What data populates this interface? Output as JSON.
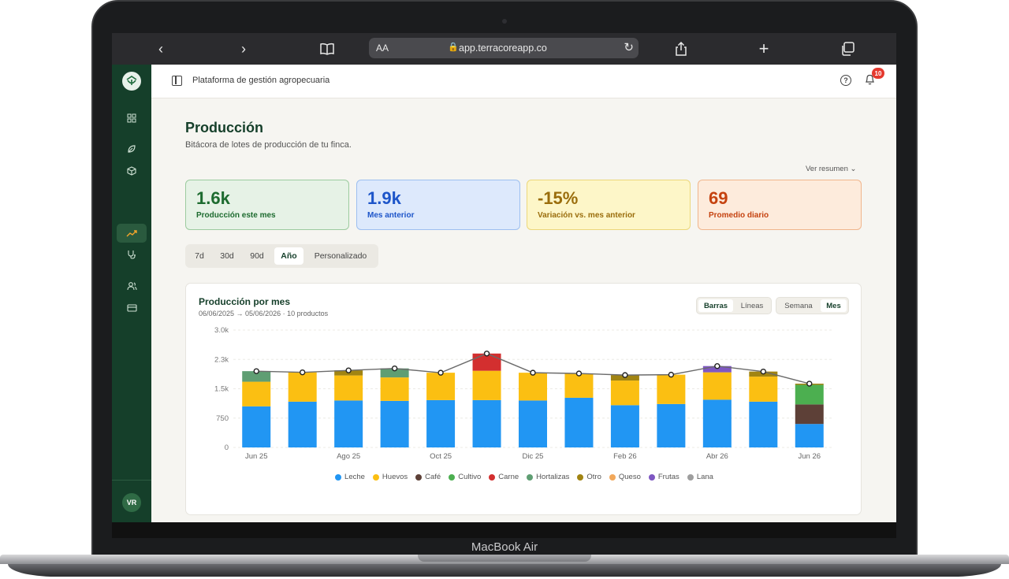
{
  "device": {
    "label": "MacBook Air"
  },
  "browser": {
    "aa_label": "AA",
    "url": "app.terracoreapp.co"
  },
  "topbar": {
    "title": "Plataforma de gestión agropecuaria",
    "notifications_count": "10"
  },
  "sidebar": {
    "avatar_initials": "VR"
  },
  "page": {
    "title": "Producción",
    "subtitle": "Bitácora de lotes de producción de tu finca.",
    "summary_toggle": "Ver resumen"
  },
  "kpis": [
    {
      "value": "1.6k",
      "label": "Producción este mes"
    },
    {
      "value": "1.9k",
      "label": "Mes anterior"
    },
    {
      "value": "-15%",
      "label": "Variación vs. mes anterior"
    },
    {
      "value": "69",
      "label": "Promedio diario"
    }
  ],
  "ranges": [
    "7d",
    "30d",
    "90d",
    "Año",
    "Personalizado"
  ],
  "range_selected": "Año",
  "chart_card": {
    "title": "Producción por mes",
    "meta": "06/06/2025 → 05/06/2026 · 10 productos",
    "view_options": [
      "Barras",
      "Líneas"
    ],
    "view_selected": "Barras",
    "period_options": [
      "Semana",
      "Mes"
    ],
    "period_selected": "Mes"
  },
  "colors": {
    "Leche": "#2196f3",
    "Huevos": "#fbbf12",
    "Café": "#5d4037",
    "Cultivo": "#4caf50",
    "Carne": "#d32f2f",
    "Hortalizas": "#5f9e73",
    "Otro": "#a18412",
    "Queso": "#f2a85a",
    "Frutas": "#7e57c2",
    "Lana": "#9e9e9e"
  },
  "chart_data": {
    "type": "bar",
    "stacked": true,
    "x": [
      "Jun 25",
      "Jul 25",
      "Ago 25",
      "Sep 25",
      "Oct 25",
      "Nov 25",
      "Dic 25",
      "Ene 26",
      "Feb 26",
      "Mar 26",
      "Abr 26",
      "May 26",
      "Jun 26"
    ],
    "x_tick_labels": [
      "Jun 25",
      "Ago 25",
      "Oct 25",
      "Dic 25",
      "Feb 26",
      "Abr 26",
      "Jun 26"
    ],
    "y_ticks": [
      "0",
      "750",
      "1.5k",
      "2.3k",
      "3.0k"
    ],
    "ylim": [
      0,
      3000
    ],
    "grid": true,
    "legend_position": "bottom",
    "series": [
      {
        "name": "Leche",
        "values": [
          1050,
          1170,
          1200,
          1190,
          1210,
          1210,
          1200,
          1270,
          1080,
          1110,
          1220,
          1170,
          600
        ]
      },
      {
        "name": "Huevos",
        "values": [
          630,
          750,
          640,
          600,
          700,
          750,
          710,
          620,
          630,
          750,
          700,
          640,
          0
        ]
      },
      {
        "name": "Café",
        "values": [
          0,
          0,
          0,
          0,
          0,
          0,
          0,
          0,
          0,
          0,
          0,
          0,
          500
        ]
      },
      {
        "name": "Cultivo",
        "values": [
          0,
          0,
          0,
          0,
          0,
          0,
          0,
          0,
          0,
          0,
          0,
          0,
          500
        ]
      },
      {
        "name": "Carne",
        "values": [
          0,
          0,
          0,
          0,
          0,
          440,
          0,
          0,
          0,
          0,
          0,
          0,
          0
        ]
      },
      {
        "name": "Hortalizas",
        "values": [
          270,
          0,
          0,
          230,
          0,
          0,
          0,
          0,
          0,
          0,
          0,
          0,
          0
        ]
      },
      {
        "name": "Otro",
        "values": [
          0,
          0,
          130,
          0,
          0,
          0,
          0,
          0,
          140,
          0,
          0,
          130,
          30
        ]
      },
      {
        "name": "Queso",
        "values": [
          0,
          0,
          0,
          0,
          0,
          0,
          0,
          0,
          0,
          0,
          0,
          0,
          0
        ]
      },
      {
        "name": "Frutas",
        "values": [
          0,
          0,
          0,
          0,
          0,
          0,
          0,
          0,
          0,
          0,
          160,
          0,
          0
        ]
      },
      {
        "name": "Lana",
        "values": [
          0,
          0,
          0,
          0,
          0,
          0,
          0,
          0,
          0,
          0,
          0,
          0,
          0
        ]
      }
    ],
    "totals_line": [
      1950,
      1920,
      1970,
      2020,
      1910,
      2400,
      1910,
      1890,
      1850,
      1860,
      2080,
      1940,
      1630
    ]
  }
}
